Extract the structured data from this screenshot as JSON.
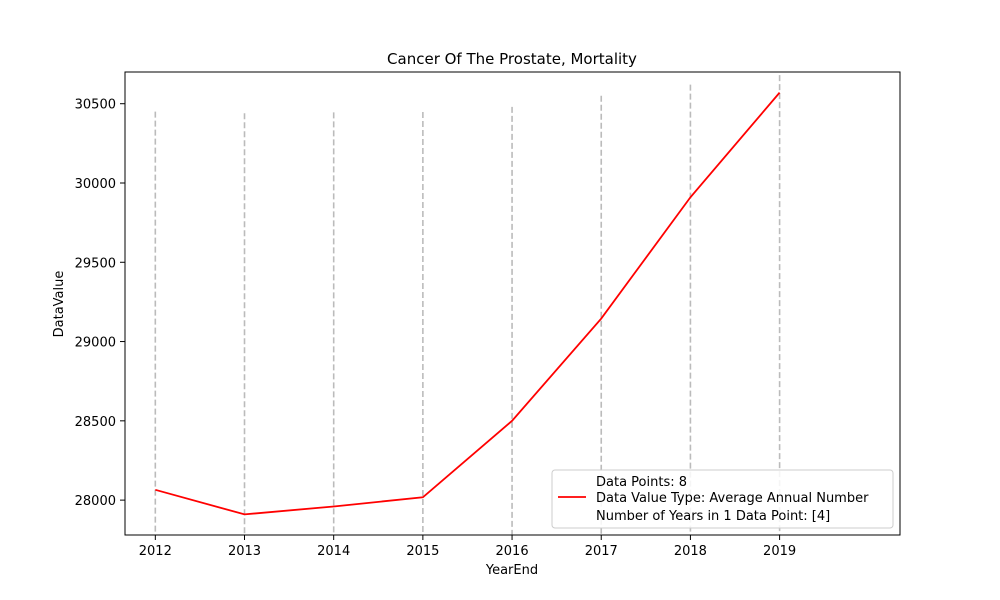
{
  "chart_data": {
    "type": "line",
    "title": "Cancer Of The Prostate, Mortality",
    "xlabel": "YearEnd",
    "ylabel": "DataValue",
    "x": [
      2012,
      2013,
      2014,
      2015,
      2016,
      2017,
      2018,
      2019
    ],
    "series": [
      {
        "name": "Data Value Type: Average Annual Number",
        "color": "#ff0000",
        "values": [
          28065,
          27910,
          27960,
          28018,
          28500,
          29145,
          29910,
          30570
        ]
      }
    ],
    "error_bars": {
      "style": "dashed",
      "color": "#bbbbbb",
      "upper": [
        30450,
        30440,
        30445,
        30448,
        30480,
        30550,
        30620,
        30680
      ]
    },
    "xticks": [
      2012,
      2013,
      2014,
      2015,
      2016,
      2017,
      2018,
      2019
    ],
    "yticks": [
      28000,
      28500,
      29000,
      29500,
      30000,
      30500
    ],
    "xlim": [
      2011.66,
      2020.35
    ],
    "ylim": [
      27780,
      30700
    ],
    "grid": false,
    "legend": {
      "placement": "lower-right",
      "lines": [
        "Data Points: 8",
        "Data Value Type: Average Annual Number",
        "Number of Years in 1 Data Point: [4]"
      ]
    }
  }
}
